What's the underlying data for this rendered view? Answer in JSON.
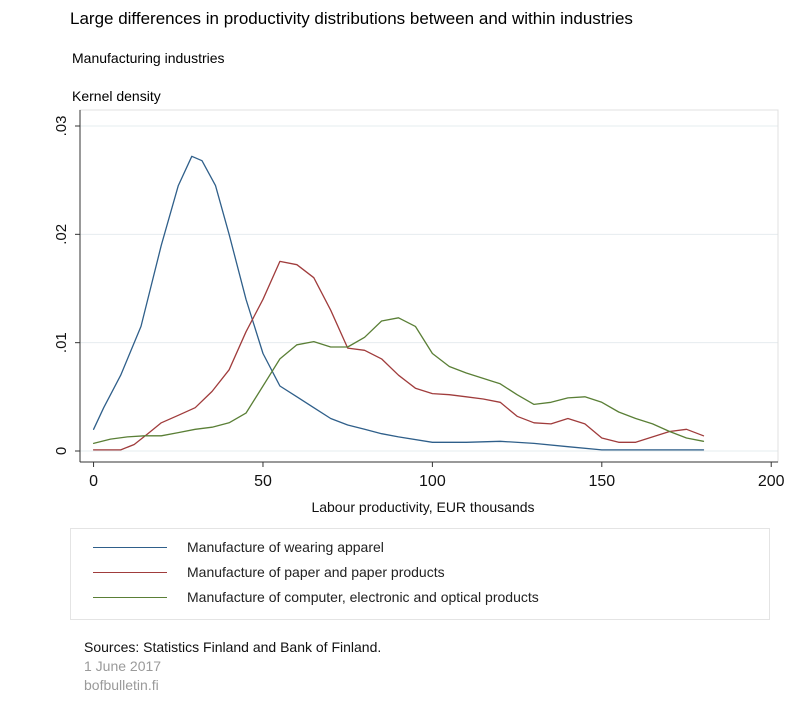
{
  "title": "Large differences in productivity distributions between and within industries",
  "subtitle": "Manufacturing industries",
  "y_caption": "Kernel density",
  "chart_data": {
    "type": "line",
    "xlabel": "Labour productivity, EUR thousands",
    "ylabel": "",
    "xlim": [
      -4,
      202
    ],
    "ylim": [
      0,
      0.03
    ],
    "x_ticks": [
      0,
      50,
      100,
      150,
      200
    ],
    "x_tick_labels": [
      "0",
      "50",
      "100",
      "150",
      "200"
    ],
    "y_ticks": [
      0,
      0.01,
      0.02,
      0.03
    ],
    "y_tick_labels": [
      "0",
      ".01",
      ".02",
      ".03"
    ],
    "grid": "horizontal",
    "legend_position": "bottom",
    "series": [
      {
        "name": "Manufacture of wearing apparel",
        "color": "#2f5f8a",
        "x": [
          0,
          3,
          8,
          14,
          20,
          25,
          29,
          32,
          36,
          40,
          45,
          50,
          55,
          60,
          65,
          70,
          75,
          80,
          85,
          90,
          100,
          110,
          120,
          130,
          140,
          150,
          160,
          170,
          180
        ],
        "y": [
          0.002,
          0.004,
          0.007,
          0.0115,
          0.019,
          0.0245,
          0.0272,
          0.0268,
          0.0245,
          0.02,
          0.014,
          0.009,
          0.006,
          0.005,
          0.004,
          0.003,
          0.0024,
          0.002,
          0.0016,
          0.0013,
          0.0008,
          0.0008,
          0.0009,
          0.0007,
          0.0004,
          0.0001,
          0.0001,
          0.0001,
          0.0001
        ]
      },
      {
        "name": "Manufacture of paper and paper products",
        "color": "#a03c3c",
        "x": [
          0,
          8,
          12,
          16,
          20,
          25,
          30,
          35,
          40,
          45,
          50,
          55,
          60,
          65,
          70,
          75,
          80,
          85,
          90,
          95,
          100,
          105,
          110,
          115,
          120,
          125,
          130,
          135,
          140,
          145,
          150,
          155,
          160,
          165,
          170,
          175,
          180
        ],
        "y": [
          0.0001,
          0.0001,
          0.0006,
          0.0016,
          0.0026,
          0.0033,
          0.004,
          0.0055,
          0.0075,
          0.011,
          0.014,
          0.0175,
          0.0172,
          0.016,
          0.013,
          0.0095,
          0.0093,
          0.0085,
          0.007,
          0.0058,
          0.0053,
          0.0052,
          0.005,
          0.0048,
          0.0045,
          0.0032,
          0.0026,
          0.0025,
          0.003,
          0.0025,
          0.0012,
          0.0008,
          0.0008,
          0.0013,
          0.0018,
          0.002,
          0.0014
        ]
      },
      {
        "name": "Manufacture of computer, electronic and optical products",
        "color": "#5a7f36",
        "x": [
          0,
          5,
          10,
          15,
          20,
          25,
          30,
          35,
          40,
          45,
          50,
          55,
          60,
          65,
          70,
          75,
          80,
          85,
          90,
          95,
          100,
          105,
          110,
          115,
          120,
          125,
          130,
          135,
          140,
          145,
          150,
          155,
          160,
          165,
          170,
          175,
          180
        ],
        "y": [
          0.0007,
          0.0011,
          0.0013,
          0.0014,
          0.0014,
          0.0017,
          0.002,
          0.0022,
          0.0026,
          0.0035,
          0.006,
          0.0085,
          0.0098,
          0.0101,
          0.0096,
          0.0096,
          0.0105,
          0.012,
          0.0123,
          0.0115,
          0.009,
          0.0078,
          0.0072,
          0.0067,
          0.0062,
          0.0052,
          0.0043,
          0.0045,
          0.0049,
          0.005,
          0.0045,
          0.0036,
          0.003,
          0.0025,
          0.0018,
          0.0012,
          0.0009
        ]
      }
    ]
  },
  "sources": "Sources: Statistics Finland and Bank of Finland.",
  "date": "1 June 2017",
  "site": "bofbulletin.fi"
}
